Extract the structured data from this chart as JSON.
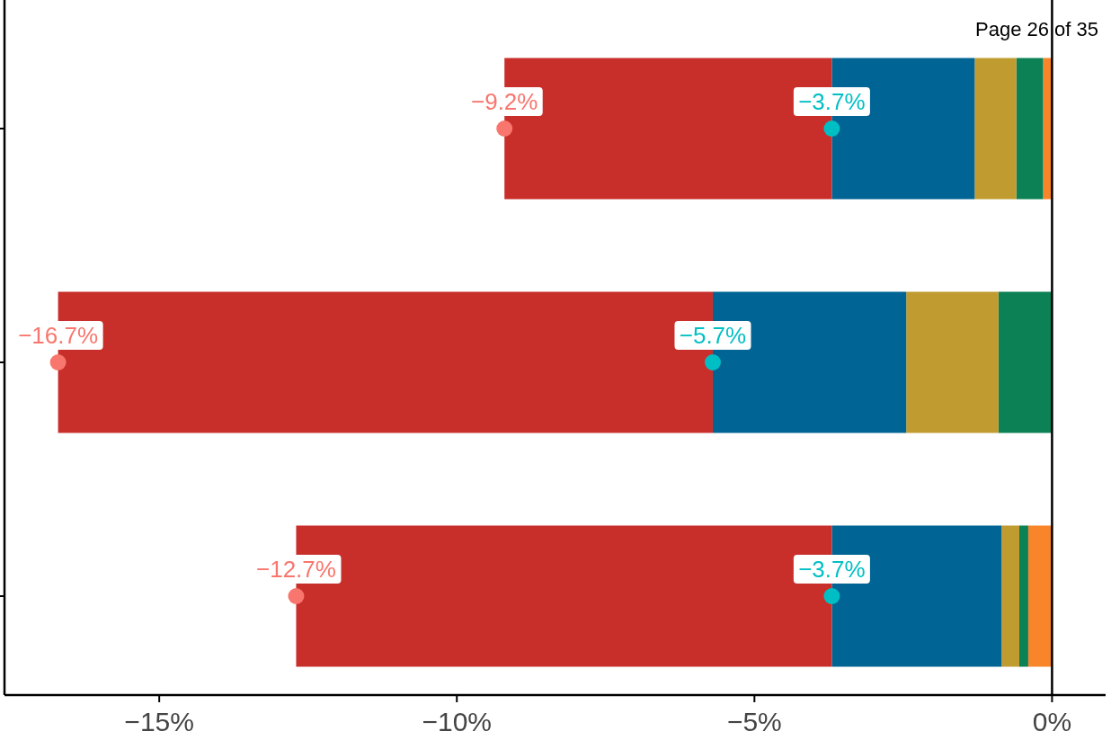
{
  "chart_data": {
    "type": "bar",
    "orientation": "horizontal",
    "stacked": true,
    "categories": [
      null,
      null,
      null
    ],
    "series": [
      {
        "color": "#f9852a",
        "values": [
          -0.15,
          0,
          -0.4
        ]
      },
      {
        "color": "#0b8155",
        "values": [
          -0.45,
          -0.9,
          -0.15
        ]
      },
      {
        "color": "#bf9b30",
        "values": [
          -0.7,
          -1.55,
          -0.3
        ]
      },
      {
        "color": "#006494",
        "values": [
          -2.4,
          -3.25,
          -2.85
        ]
      },
      {
        "color": "#c82f2b",
        "values": [
          -5.5,
          -11.0,
          -9.0
        ]
      },
      {
        "type": "scatter",
        "color": "#f8766d",
        "values": [
          -9.2,
          -16.7,
          -12.7
        ],
        "value_labels": [
          "−9.2%",
          "−16.7%",
          "−12.7%"
        ]
      },
      {
        "type": "scatter",
        "color": "#00bfc4",
        "values": [
          -3.7,
          -5.7,
          -3.7
        ],
        "value_labels": [
          "−3.7%",
          "−5.7%",
          "−3.7%"
        ]
      }
    ],
    "xlim": [
      -17.6,
      0.9
    ],
    "xticks": [
      {
        "value": -15,
        "label": "−15%"
      },
      {
        "value": -10,
        "label": "−10%"
      },
      {
        "value": -5,
        "label": "−5%"
      },
      {
        "value": 0,
        "label": "0%"
      }
    ],
    "ref_lines": [
      {
        "axis": "x",
        "value": 0,
        "color": "#000000"
      }
    ],
    "tick_labels": "x",
    "grid": false,
    "marker": "circle",
    "annotations": [
      "Page 26 of 35"
    ]
  }
}
